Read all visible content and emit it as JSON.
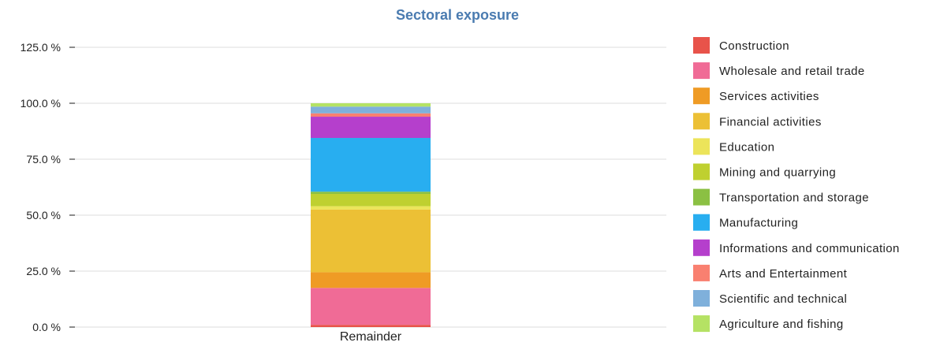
{
  "chart_data": {
    "type": "bar",
    "stacked": true,
    "title": "Sectoral exposure",
    "title_color": "#4a7bb0",
    "categories": [
      "Remainder"
    ],
    "y_tick_labels": [
      "0.0 %",
      "25.0 %",
      "50.0 %",
      "75.0 %",
      "100.0 %",
      "125.0 %"
    ],
    "y_ticks": [
      0,
      25,
      50,
      75,
      100,
      125
    ],
    "ylim": [
      0,
      125
    ],
    "grid": true,
    "legend_position": "right",
    "series": [
      {
        "name": "Construction",
        "color": "#e8534a",
        "values": [
          1.0
        ]
      },
      {
        "name": "Wholesale and retail trade",
        "color": "#f06b96",
        "values": [
          16.5
        ]
      },
      {
        "name": "Services activities",
        "color": "#ef9b25",
        "values": [
          7.0
        ]
      },
      {
        "name": "Financial activities",
        "color": "#ecc035",
        "values": [
          28.0
        ]
      },
      {
        "name": "Education",
        "color": "#ece45a",
        "values": [
          1.5
        ]
      },
      {
        "name": "Mining and quarrying",
        "color": "#bfd030",
        "values": [
          5.5
        ]
      },
      {
        "name": "Transportation and storage",
        "color": "#8bc043",
        "values": [
          1.0
        ]
      },
      {
        "name": "Manufacturing",
        "color": "#28aef0",
        "values": [
          24.0
        ]
      },
      {
        "name": "Informations and communication",
        "color": "#b53fcc",
        "values": [
          9.5
        ]
      },
      {
        "name": "Arts and Entertainment",
        "color": "#f98070",
        "values": [
          1.5
        ]
      },
      {
        "name": "Scientific and technical",
        "color": "#7fb0db",
        "values": [
          3.0
        ]
      },
      {
        "name": "Agriculture and fishing",
        "color": "#b5e264",
        "values": [
          1.5
        ]
      }
    ]
  }
}
